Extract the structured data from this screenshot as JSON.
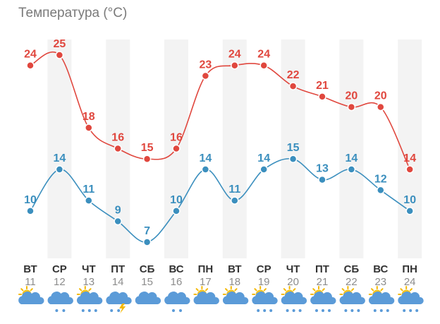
{
  "chart_data": {
    "type": "line",
    "title": "Температура (°C)",
    "categories": [
      "ВТ",
      "СР",
      "ЧТ",
      "ПТ",
      "СБ",
      "ВС",
      "ПН",
      "ВТ",
      "СР",
      "ЧТ",
      "ПТ",
      "СБ",
      "ВС",
      "ПН"
    ],
    "dates": [
      "11",
      "12",
      "13",
      "14",
      "15",
      "16",
      "17",
      "18",
      "19",
      "20",
      "21",
      "22",
      "23",
      "24"
    ],
    "series": [
      {
        "values": [
          24,
          25,
          18,
          16,
          15,
          16,
          23,
          24,
          24,
          22,
          21,
          20,
          20,
          14
        ],
        "color": "#e0473e"
      },
      {
        "values": [
          10,
          14,
          11,
          9,
          7,
          10,
          14,
          11,
          14,
          15,
          13,
          14,
          12,
          10
        ],
        "color": "#3b8fbe"
      }
    ],
    "ylim": [
      5,
      27
    ],
    "grid": false,
    "weather_icons": [
      "partly-cloudy-icon",
      "rain-cloud-icon",
      "partly-cloudy-rain-icon",
      "thunderstorm-icon",
      "cloud-icon",
      "rain-cloud-icon",
      "partly-cloudy-icon",
      "partly-cloudy-icon",
      "partly-cloudy-rain-icon",
      "partly-cloudy-rain-icon",
      "partly-cloudy-rain-icon",
      "partly-cloudy-rain-icon",
      "partly-cloudy-rain-icon",
      "partly-cloudy-rain-icon"
    ]
  }
}
